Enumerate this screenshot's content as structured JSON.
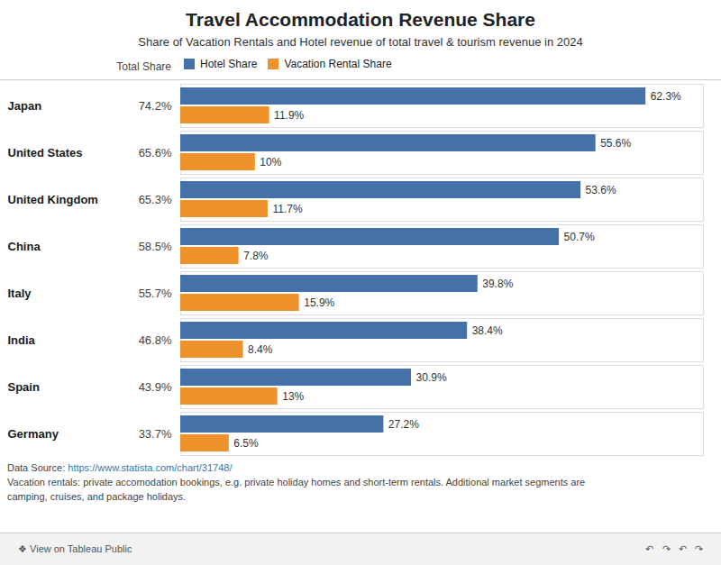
{
  "chart_data": {
    "type": "bar",
    "orientation": "horizontal",
    "title": "Travel Accommodation Revenue Share",
    "subtitle": "Share of Vacation Rentals and Hotel revenue of total travel & tourism revenue in 2024",
    "categories": [
      "Japan",
      "United States",
      "United Kingdom",
      "China",
      "Italy",
      "India",
      "Spain",
      "Germany"
    ],
    "series": [
      {
        "name": "Hotel Share",
        "color": "#4472a8",
        "values": [
          62.3,
          55.6,
          53.6,
          50.7,
          39.8,
          38.4,
          30.9,
          27.2
        ],
        "value_labels": [
          "62.3%",
          "55.6%",
          "53.6%",
          "50.7%",
          "39.8%",
          "38.4%",
          "30.9%",
          "27.2%"
        ]
      },
      {
        "name": "Vacation Rental Share",
        "color": "#f0922b",
        "values": [
          11.9,
          10.0,
          11.7,
          7.8,
          15.9,
          8.4,
          13.0,
          6.5
        ],
        "value_labels": [
          "11.9%",
          "10%",
          "11.7%",
          "7.8%",
          "15.9%",
          "8.4%",
          "13%",
          "6.5%"
        ]
      }
    ],
    "totals": {
      "name": "Total Share",
      "values": [
        74.2,
        65.6,
        65.3,
        58.5,
        55.7,
        46.8,
        43.9,
        33.7
      ],
      "value_labels": [
        "74.2%",
        "65.6%",
        "65.3%",
        "58.5%",
        "55.7%",
        "46.8%",
        "43.9%",
        "33.7%"
      ]
    },
    "xlim": [
      0,
      70
    ],
    "xticks": [],
    "tick_labels": "y",
    "data_labels": true,
    "grid": false,
    "legend": "top",
    "source_prefix": "Data Source: ",
    "source_url": "https://www.statista.com/chart/31748/",
    "footnotes": [
      "Vacation rentals: private accomodation bookings, e.g. private holiday homes and short-term rentals. Additional market segments are",
      "camping, cruises, and package holidays."
    ],
    "footer_left": "❖ View on Tableau Public",
    "footer_right": "↶   ↷   ↶   ↷"
  }
}
